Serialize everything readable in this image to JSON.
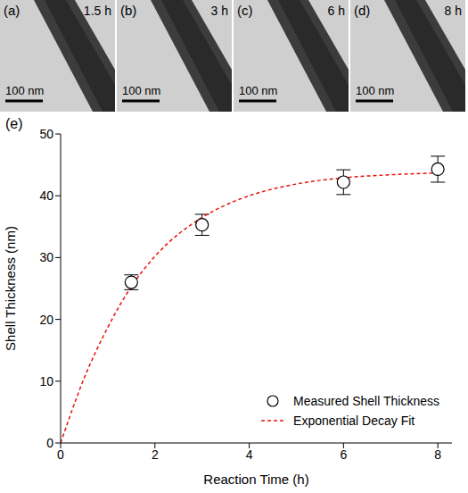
{
  "image_panels": [
    {
      "label": "(a)",
      "time": "1.5 h",
      "scale_bar": "100 nm"
    },
    {
      "label": "(b)",
      "time": "3 h",
      "scale_bar": "100 nm"
    },
    {
      "label": "(c)",
      "time": "6 h",
      "scale_bar": "100 nm"
    },
    {
      "label": "(d)",
      "time": "8 h",
      "scale_bar": "100 nm"
    }
  ],
  "chart_data": {
    "type": "scatter",
    "title": "(e)",
    "x_label": "Reaction Time (h)",
    "y_label": "Shell Thickness (nm)",
    "xlim": [
      0,
      8.3
    ],
    "xticks": [
      0,
      2,
      4,
      6,
      8
    ],
    "ylim": [
      0,
      50
    ],
    "yticks": [
      0,
      10,
      20,
      30,
      40,
      50
    ],
    "grid": false,
    "legend": "lower right",
    "series": [
      {
        "name": "Measured Shell Thickness",
        "type": "scatter",
        "marker": "circle_open",
        "color": "#000000",
        "x": [
          1.5,
          3,
          6,
          8
        ],
        "values": [
          26,
          35.3,
          42.2,
          44.3
        ],
        "error": [
          1.2,
          1.7,
          2,
          2.1
        ]
      },
      {
        "name": "Exponential Decay Fit",
        "type": "line",
        "line_style": "dashed",
        "color": "#e8120c",
        "x": [
          0,
          0.5,
          1,
          1.5,
          2,
          2.5,
          3,
          3.5,
          4,
          5,
          6,
          7,
          8
        ],
        "values": [
          0,
          10.5,
          18.7,
          25.3,
          30.2,
          33.8,
          36.5,
          38.5,
          40,
          41.9,
          42.9,
          43.4,
          43.7
        ]
      }
    ]
  }
}
